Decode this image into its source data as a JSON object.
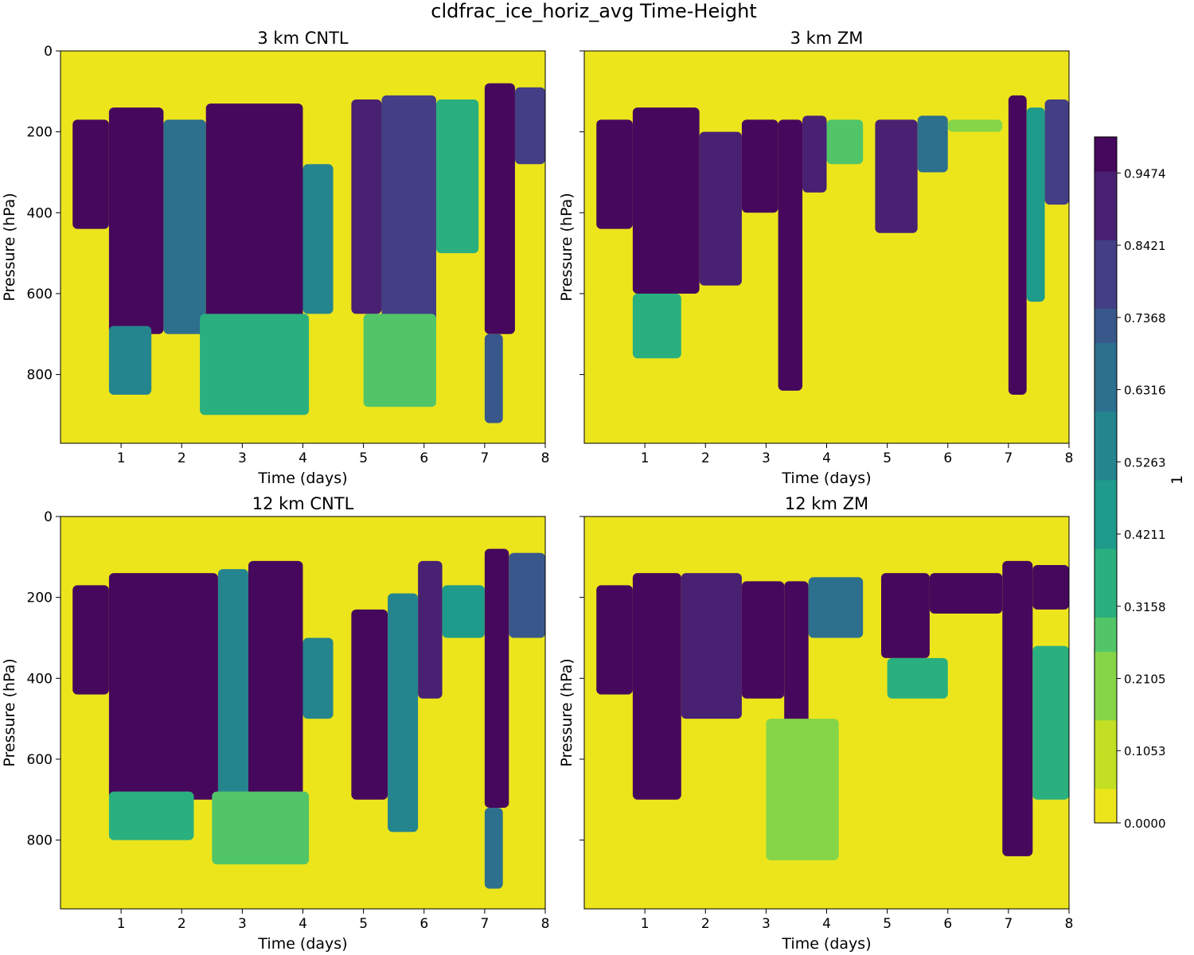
{
  "figure": {
    "suptitle": "cldfrac_ice_horiz_avg Time-Height"
  },
  "colors": {
    "yellow": "#ece51c",
    "dark_purple": "#46085c",
    "viridis": [
      "#fde725",
      "#c2df23",
      "#86d549",
      "#52c569",
      "#2ab07f",
      "#1e9b8a",
      "#25858e",
      "#2d708e",
      "#38588c",
      "#433e85",
      "#482173",
      "#440154"
    ]
  },
  "colorbar": {
    "label": "1",
    "levels": 20,
    "min": 0.0,
    "max": 1.0,
    "ticks": [
      0.0,
      0.1053,
      0.2105,
      0.3158,
      0.4211,
      0.5263,
      0.6316,
      0.7368,
      0.8421,
      0.9474
    ],
    "tick_labels": [
      "0.0000",
      "0.1053",
      "0.2105",
      "0.3158",
      "0.4211",
      "0.5263",
      "0.6316",
      "0.7368",
      "0.8421",
      "0.9474"
    ]
  },
  "chart_data": [
    {
      "type": "heatmap",
      "panel": "top-left",
      "title": "3 km CNTL",
      "xlabel": "Time (days)",
      "ylabel": "Pressure (hPa)",
      "xlim": [
        0,
        8
      ],
      "ylim": [
        970,
        0
      ],
      "x_ticks": [
        1,
        2,
        3,
        4,
        5,
        6,
        7,
        8
      ],
      "y_ticks": [
        0,
        200,
        400,
        600,
        800
      ],
      "y_tick_labels_visible": true,
      "regions": [
        {
          "t": [
            0.2,
            0.8
          ],
          "top": 170,
          "bot": 440,
          "val": 1.0
        },
        {
          "t": [
            0.8,
            1.7
          ],
          "top": 140,
          "bot": 700,
          "val": 1.0
        },
        {
          "t": [
            0.8,
            1.5
          ],
          "top": 680,
          "bot": 850,
          "val": 0.5
        },
        {
          "t": [
            1.7,
            2.4
          ],
          "top": 170,
          "bot": 700,
          "val": 0.6
        },
        {
          "t": [
            2.4,
            4.0
          ],
          "top": 130,
          "bot": 680,
          "val": 1.0
        },
        {
          "t": [
            2.3,
            4.1
          ],
          "top": 650,
          "bot": 900,
          "val": 0.35
        },
        {
          "t": [
            4.0,
            4.5
          ],
          "top": 280,
          "bot": 650,
          "val": 0.5
        },
        {
          "t": [
            4.8,
            5.3
          ],
          "top": 120,
          "bot": 650,
          "val": 0.95
        },
        {
          "t": [
            5.3,
            6.2
          ],
          "top": 110,
          "bot": 700,
          "val": 0.85
        },
        {
          "t": [
            5.0,
            6.2
          ],
          "top": 650,
          "bot": 880,
          "val": 0.3
        },
        {
          "t": [
            6.2,
            6.9
          ],
          "top": 120,
          "bot": 500,
          "val": 0.4
        },
        {
          "t": [
            7.0,
            7.5
          ],
          "top": 80,
          "bot": 700,
          "val": 1.0
        },
        {
          "t": [
            7.0,
            7.3
          ],
          "top": 700,
          "bot": 920,
          "val": 0.7
        },
        {
          "t": [
            7.5,
            8.0
          ],
          "top": 90,
          "bot": 280,
          "val": 0.8
        }
      ]
    },
    {
      "type": "heatmap",
      "panel": "top-right",
      "title": "3 km ZM",
      "xlabel": "Time (days)",
      "ylabel": "Pressure (hPa)",
      "xlim": [
        0,
        8
      ],
      "ylim": [
        970,
        0
      ],
      "x_ticks": [
        1,
        2,
        3,
        4,
        5,
        6,
        7,
        8
      ],
      "y_ticks": [
        0,
        200,
        400,
        600,
        800
      ],
      "y_tick_labels_visible": false,
      "regions": [
        {
          "t": [
            0.2,
            0.8
          ],
          "top": 170,
          "bot": 440,
          "val": 1.0
        },
        {
          "t": [
            0.8,
            1.9
          ],
          "top": 140,
          "bot": 600,
          "val": 1.0
        },
        {
          "t": [
            0.8,
            1.6
          ],
          "top": 600,
          "bot": 760,
          "val": 0.4
        },
        {
          "t": [
            1.9,
            2.6
          ],
          "top": 200,
          "bot": 580,
          "val": 0.9
        },
        {
          "t": [
            2.6,
            3.2
          ],
          "top": 170,
          "bot": 400,
          "val": 1.0
        },
        {
          "t": [
            3.2,
            3.6
          ],
          "top": 170,
          "bot": 840,
          "val": 1.0
        },
        {
          "t": [
            3.6,
            4.0
          ],
          "top": 160,
          "bot": 350,
          "val": 0.9
        },
        {
          "t": [
            4.0,
            4.6
          ],
          "top": 170,
          "bot": 280,
          "val": 0.3
        },
        {
          "t": [
            4.8,
            5.5
          ],
          "top": 170,
          "bot": 450,
          "val": 0.9
        },
        {
          "t": [
            5.5,
            6.0
          ],
          "top": 160,
          "bot": 300,
          "val": 0.6
        },
        {
          "t": [
            6.0,
            6.9
          ],
          "top": 170,
          "bot": 200,
          "val": 0.2
        },
        {
          "t": [
            7.0,
            7.3
          ],
          "top": 110,
          "bot": 850,
          "val": 1.0
        },
        {
          "t": [
            7.3,
            7.6
          ],
          "top": 140,
          "bot": 620,
          "val": 0.45
        },
        {
          "t": [
            7.6,
            8.0
          ],
          "top": 120,
          "bot": 380,
          "val": 0.8
        }
      ]
    },
    {
      "type": "heatmap",
      "panel": "bottom-left",
      "title": "12 km CNTL",
      "xlabel": "Time (days)",
      "ylabel": "Pressure (hPa)",
      "xlim": [
        0,
        8
      ],
      "ylim": [
        970,
        0
      ],
      "x_ticks": [
        1,
        2,
        3,
        4,
        5,
        6,
        7,
        8
      ],
      "y_ticks": [
        0,
        200,
        400,
        600,
        800
      ],
      "y_tick_labels_visible": true,
      "regions": [
        {
          "t": [
            0.2,
            0.8
          ],
          "top": 170,
          "bot": 440,
          "val": 1.0
        },
        {
          "t": [
            0.8,
            2.6
          ],
          "top": 140,
          "bot": 700,
          "val": 1.0
        },
        {
          "t": [
            0.8,
            2.2
          ],
          "top": 680,
          "bot": 800,
          "val": 0.35
        },
        {
          "t": [
            2.6,
            3.1
          ],
          "top": 130,
          "bot": 700,
          "val": 0.55
        },
        {
          "t": [
            3.1,
            4.0
          ],
          "top": 110,
          "bot": 700,
          "val": 1.0
        },
        {
          "t": [
            2.5,
            4.1
          ],
          "top": 680,
          "bot": 860,
          "val": 0.3
        },
        {
          "t": [
            4.0,
            4.5
          ],
          "top": 300,
          "bot": 500,
          "val": 0.5
        },
        {
          "t": [
            4.8,
            5.4
          ],
          "top": 230,
          "bot": 700,
          "val": 1.0
        },
        {
          "t": [
            5.4,
            5.9
          ],
          "top": 190,
          "bot": 780,
          "val": 0.5
        },
        {
          "t": [
            5.9,
            6.3
          ],
          "top": 110,
          "bot": 450,
          "val": 0.95
        },
        {
          "t": [
            6.3,
            7.0
          ],
          "top": 170,
          "bot": 300,
          "val": 0.45
        },
        {
          "t": [
            7.0,
            7.4
          ],
          "top": 80,
          "bot": 720,
          "val": 1.0
        },
        {
          "t": [
            7.0,
            7.3
          ],
          "top": 720,
          "bot": 920,
          "val": 0.6
        },
        {
          "t": [
            7.4,
            8.0
          ],
          "top": 90,
          "bot": 300,
          "val": 0.75
        }
      ]
    },
    {
      "type": "heatmap",
      "panel": "bottom-right",
      "title": "12 km ZM",
      "xlabel": "Time (days)",
      "ylabel": "Pressure (hPa)",
      "xlim": [
        0,
        8
      ],
      "ylim": [
        970,
        0
      ],
      "x_ticks": [
        1,
        2,
        3,
        4,
        5,
        6,
        7,
        8
      ],
      "y_ticks": [
        0,
        200,
        400,
        600,
        800
      ],
      "y_tick_labels_visible": false,
      "regions": [
        {
          "t": [
            0.2,
            0.8
          ],
          "top": 170,
          "bot": 440,
          "val": 1.0
        },
        {
          "t": [
            0.8,
            1.6
          ],
          "top": 140,
          "bot": 700,
          "val": 1.0
        },
        {
          "t": [
            1.6,
            2.6
          ],
          "top": 140,
          "bot": 500,
          "val": 0.9
        },
        {
          "t": [
            2.6,
            3.3
          ],
          "top": 160,
          "bot": 450,
          "val": 1.0
        },
        {
          "t": [
            3.3,
            3.7
          ],
          "top": 160,
          "bot": 800,
          "val": 1.0
        },
        {
          "t": [
            3.7,
            4.6
          ],
          "top": 150,
          "bot": 300,
          "val": 0.6
        },
        {
          "t": [
            3.0,
            4.2
          ],
          "top": 500,
          "bot": 850,
          "val": 0.2
        },
        {
          "t": [
            4.9,
            5.7
          ],
          "top": 140,
          "bot": 350,
          "val": 1.0
        },
        {
          "t": [
            5.7,
            6.9
          ],
          "top": 140,
          "bot": 240,
          "val": 1.0
        },
        {
          "t": [
            5.0,
            6.0
          ],
          "top": 350,
          "bot": 450,
          "val": 0.35
        },
        {
          "t": [
            6.9,
            7.4
          ],
          "top": 110,
          "bot": 840,
          "val": 1.0
        },
        {
          "t": [
            7.4,
            8.0
          ],
          "top": 120,
          "bot": 230,
          "val": 1.0
        },
        {
          "t": [
            7.4,
            8.0
          ],
          "top": 320,
          "bot": 700,
          "val": 0.35
        }
      ]
    }
  ]
}
